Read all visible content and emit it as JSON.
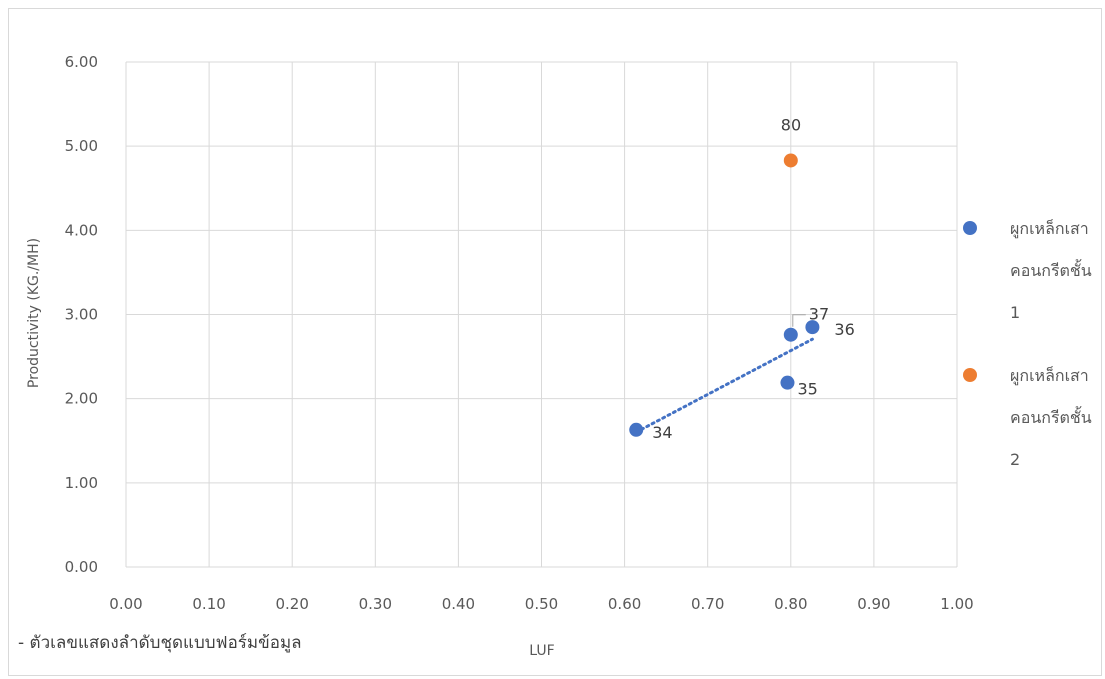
{
  "chart_data": {
    "type": "scatter",
    "xlabel": "LUF",
    "ylabel": "Productivity (KG./MH)",
    "xlim": [
      0,
      1
    ],
    "ylim": [
      0,
      6
    ],
    "x_ticks": [
      "0.00",
      "0.10",
      "0.20",
      "0.30",
      "0.40",
      "0.50",
      "0.60",
      "0.70",
      "0.80",
      "0.90",
      "1.00"
    ],
    "y_ticks": [
      "0.00",
      "1.00",
      "2.00",
      "3.00",
      "4.00",
      "5.00",
      "6.00"
    ],
    "grid": true,
    "legend_position": "right",
    "series": [
      {
        "name": "ผูกเหล็กเสาคอนกรีตชั้น 1",
        "legend_lines": [
          "ผูกเหล็กเสา",
          "คอนกรีตชั้น",
          "1"
        ],
        "color": "#4472C4",
        "trendline": "linear (dotted)",
        "points": [
          {
            "x": 0.614,
            "y": 1.63,
            "label": "34"
          },
          {
            "x": 0.796,
            "y": 2.19,
            "label": "35"
          },
          {
            "x": 0.826,
            "y": 2.85,
            "label": "36"
          },
          {
            "x": 0.8,
            "y": 2.76,
            "label": "37"
          }
        ]
      },
      {
        "name": "ผูกเหล็กเสาคอนกรีตชั้น 2",
        "legend_lines": [
          "ผูกเหล็กเสา",
          "คอนกรีตชั้น",
          "2"
        ],
        "color": "#ED7D31",
        "points": [
          {
            "x": 0.8,
            "y": 4.83,
            "label": "80"
          }
        ]
      }
    ],
    "annotation": "- ตัวเลขแสดงลำดับชุดแบบฟอร์มข้อมูล"
  }
}
